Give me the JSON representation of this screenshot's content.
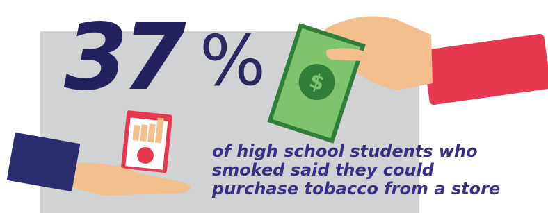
{
  "stat": {
    "number": "37",
    "unit": "%"
  },
  "caption": [
    "of high school students who",
    "smoked said they could",
    "purchase tobacco from a store"
  ]
}
